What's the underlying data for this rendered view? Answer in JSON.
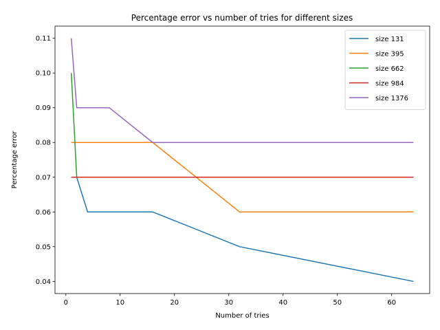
{
  "chart_data": {
    "type": "line",
    "title": "Percentage error vs number of tries for different sizes",
    "xlabel": "Number of tries",
    "ylabel": "Percentage error",
    "xlim": [
      -2,
      67
    ],
    "ylim": [
      0.0365,
      0.1135
    ],
    "xticks": [
      0,
      10,
      20,
      30,
      40,
      50,
      60
    ],
    "yticks": [
      0.04,
      0.05,
      0.06,
      0.07,
      0.08,
      0.09,
      0.1,
      0.11
    ],
    "ytick_labels": [
      "0.04",
      "0.05",
      "0.06",
      "0.07",
      "0.08",
      "0.09",
      "0.10",
      "0.11"
    ],
    "legend_position": "top-right",
    "grid": false,
    "x": [
      1,
      2,
      4,
      8,
      16,
      32,
      64
    ],
    "series": [
      {
        "name": "size 131",
        "color": "#1f77b4",
        "values": [
          0.07,
          0.07,
          0.06,
          0.06,
          0.06,
          0.05,
          0.04
        ]
      },
      {
        "name": "size 395",
        "color": "#ff7f0e",
        "values": [
          0.08,
          0.08,
          0.08,
          0.08,
          0.08,
          0.06,
          0.06
        ]
      },
      {
        "name": "size 662",
        "color": "#2ca02c",
        "values": [
          0.1,
          0.07,
          0.07,
          0.07,
          0.07,
          0.07,
          0.07
        ]
      },
      {
        "name": "size 984",
        "color": "#d62728",
        "values": [
          0.07,
          0.07,
          0.07,
          0.07,
          0.07,
          0.07,
          0.07
        ]
      },
      {
        "name": "size 1376",
        "color": "#9467bd",
        "values": [
          0.11,
          0.09,
          0.09,
          0.09,
          0.08,
          0.08,
          0.08
        ]
      }
    ]
  }
}
